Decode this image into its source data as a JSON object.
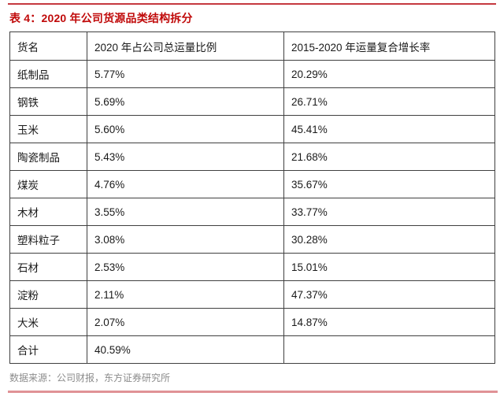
{
  "title": "表 4：2020 年公司货源品类结构拆分",
  "table": {
    "columns": [
      "货名",
      "2020 年占公司总运量比例",
      "2015-2020 年运量复合增长率"
    ],
    "rows": [
      [
        "纸制品",
        "5.77%",
        "20.29%"
      ],
      [
        "钢铁",
        "5.69%",
        "26.71%"
      ],
      [
        "玉米",
        "5.60%",
        "45.41%"
      ],
      [
        "陶瓷制品",
        "5.43%",
        "21.68%"
      ],
      [
        "煤炭",
        "4.76%",
        "35.67%"
      ],
      [
        "木材",
        "3.55%",
        "33.77%"
      ],
      [
        "塑料粒子",
        "3.08%",
        "30.28%"
      ],
      [
        "石材",
        "2.53%",
        "15.01%"
      ],
      [
        "淀粉",
        "2.11%",
        "47.37%"
      ],
      [
        "大米",
        "2.07%",
        "14.87%"
      ],
      [
        "合计",
        "40.59%",
        ""
      ]
    ]
  },
  "footer": {
    "source": "数据来源：公司财报，东方证券研究所"
  },
  "colors": {
    "title_red": "#C00A0A",
    "top_rule_red": "#C5393F",
    "bottom_rule_pink": "#E09296",
    "table_border": "#404040",
    "footer_gray": "#8C8C8C"
  }
}
